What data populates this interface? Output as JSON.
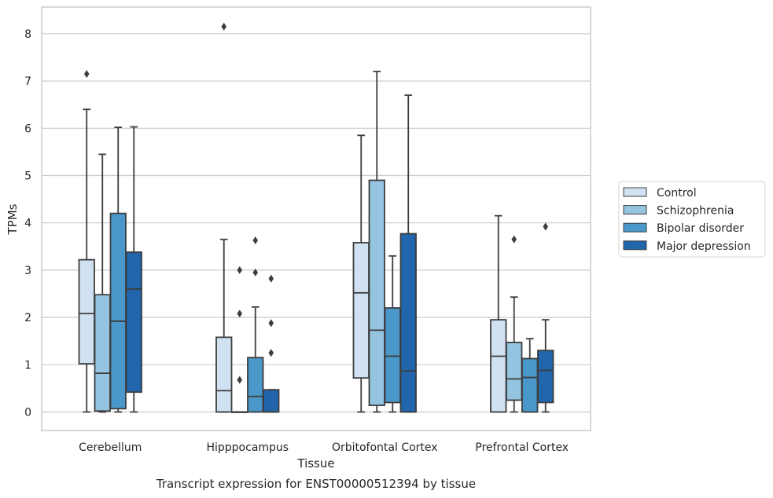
{
  "chart_data": {
    "type": "box",
    "title": "Transcript expression for ENST00000512394 by tissue",
    "xlabel": "Tissue",
    "ylabel": "TPMs",
    "ylim": [
      -0.4,
      8.55
    ],
    "yticks": [
      0,
      1,
      2,
      3,
      4,
      5,
      6,
      7,
      8
    ],
    "grid": true,
    "legend_position": "right",
    "categories": [
      "Cerebellum",
      "Hipppocampus",
      "Orbitofontal Cortex",
      "Prefrontal Cortex"
    ],
    "series": [
      {
        "name": "Control",
        "color": "#d0e1f2",
        "boxes": [
          {
            "whislo": 0,
            "q1": 1.02,
            "med": 2.08,
            "q3": 3.22,
            "whishi": 6.4,
            "fliers": [
              7.15
            ]
          },
          {
            "whislo": 0,
            "q1": 0,
            "med": 0.45,
            "q3": 1.58,
            "whishi": 3.65,
            "fliers": [
              8.15
            ]
          },
          {
            "whislo": 0,
            "q1": 0.72,
            "med": 2.52,
            "q3": 3.58,
            "whishi": 5.85,
            "fliers": []
          },
          {
            "whislo": 0,
            "q1": 0,
            "med": 1.18,
            "q3": 1.95,
            "whishi": 4.15,
            "fliers": []
          }
        ]
      },
      {
        "name": "Schizophrenia",
        "color": "#94c4df",
        "boxes": [
          {
            "whislo": 0,
            "q1": 0.02,
            "med": 0.82,
            "q3": 2.48,
            "whishi": 5.45,
            "fliers": []
          },
          {
            "whislo": 0,
            "q1": 0,
            "med": 0,
            "q3": 0,
            "whishi": 0,
            "fliers": [
              0.68,
              2.08,
              3.0
            ]
          },
          {
            "whislo": 0,
            "q1": 0.14,
            "med": 1.73,
            "q3": 4.9,
            "whishi": 7.2,
            "fliers": []
          },
          {
            "whislo": 0,
            "q1": 0.25,
            "med": 0.7,
            "q3": 1.47,
            "whishi": 2.43,
            "fliers": [
              3.65
            ]
          }
        ]
      },
      {
        "name": "Bipolar disorder",
        "color": "#4a98c9",
        "boxes": [
          {
            "whislo": 0,
            "q1": 0.07,
            "med": 1.92,
            "q3": 4.2,
            "whishi": 6.02,
            "fliers": []
          },
          {
            "whislo": 0,
            "q1": 0,
            "med": 0.33,
            "q3": 1.15,
            "whishi": 2.22,
            "fliers": [
              2.95,
              3.63
            ]
          },
          {
            "whislo": 0,
            "q1": 0.2,
            "med": 1.18,
            "q3": 2.2,
            "whishi": 3.3,
            "fliers": []
          },
          {
            "whislo": 0,
            "q1": 0,
            "med": 0.73,
            "q3": 1.13,
            "whishi": 1.55,
            "fliers": []
          }
        ]
      },
      {
        "name": "Major depression",
        "color": "#2166ac",
        "boxes": [
          {
            "whislo": 0,
            "q1": 0.42,
            "med": 2.6,
            "q3": 3.38,
            "whishi": 6.03,
            "fliers": []
          },
          {
            "whislo": 0,
            "q1": 0,
            "med": 0,
            "q3": 0.47,
            "whishi": 0.47,
            "fliers": [
              1.25,
              1.88,
              2.82
            ]
          },
          {
            "whislo": 0,
            "q1": 0,
            "med": 0.87,
            "q3": 3.77,
            "whishi": 6.7,
            "fliers": []
          },
          {
            "whislo": 0,
            "q1": 0.2,
            "med": 0.88,
            "q3": 1.3,
            "whishi": 1.95,
            "fliers": [
              3.92
            ]
          }
        ]
      }
    ]
  }
}
